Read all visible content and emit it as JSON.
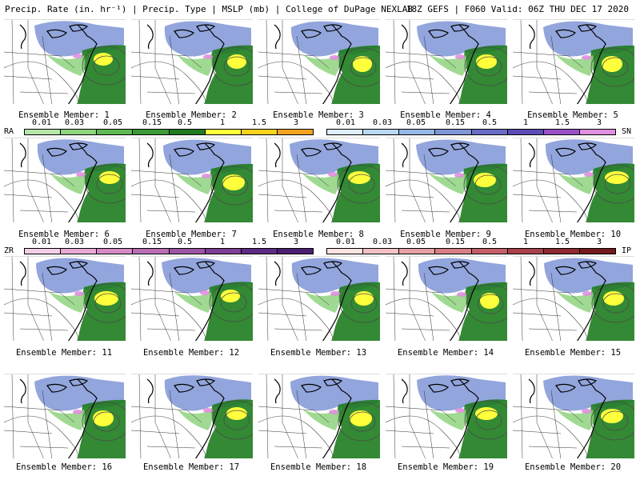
{
  "header": {
    "left": "Precip. Rate (in. hr⁻¹) | Precip. Type | MSLP (mb) | College of DuPage NEXLAB",
    "right": "18Z GEFS | F060 Valid: 06Z THU DEC 17 2020"
  },
  "members": [
    {
      "label": "Ensemble Member: 1"
    },
    {
      "label": "Ensemble Member: 2"
    },
    {
      "label": "Ensemble Member: 3"
    },
    {
      "label": "Ensemble Member: 4"
    },
    {
      "label": "Ensemble Member: 5"
    },
    {
      "label": "Ensemble Member: 6"
    },
    {
      "label": "Ensemble Member: 7"
    },
    {
      "label": "Ensemble Member: 8"
    },
    {
      "label": "Ensemble Member: 9"
    },
    {
      "label": "Ensemble Member: 10"
    },
    {
      "label": "Ensemble Member: 11"
    },
    {
      "label": "Ensemble Member: 12"
    },
    {
      "label": "Ensemble Member: 13"
    },
    {
      "label": "Ensemble Member: 14"
    },
    {
      "label": "Ensemble Member: 15"
    },
    {
      "label": "Ensemble Member: 16"
    },
    {
      "label": "Ensemble Member: 17"
    },
    {
      "label": "Ensemble Member: 18"
    },
    {
      "label": "Ensemble Member: 19"
    },
    {
      "label": "Ensemble Member: 20"
    }
  ],
  "legends": {
    "rain": {
      "code": "RA",
      "ticks": [
        "0.01",
        "0.03",
        "0.05",
        "0.15",
        "0.5",
        "1",
        "1.5",
        "3"
      ],
      "colors": [
        "#b6e6a9",
        "#8fd47f",
        "#5fba53",
        "#3a9a36",
        "#1e7c1e",
        "#ffff3c",
        "#f7d21e",
        "#f5a31e"
      ]
    },
    "snow": {
      "code": "SN",
      "ticks": [
        "0.01",
        "0.03",
        "0.05",
        "0.15",
        "0.5",
        "1",
        "1.5",
        "3"
      ],
      "colors": [
        "#dfeefc",
        "#b8d8f4",
        "#95b8e6",
        "#7f95d6",
        "#6a6cc6",
        "#5a4bb5",
        "#9a4fc8",
        "#e08ee0"
      ]
    },
    "freezing_rain": {
      "code": "ZR",
      "ticks": [
        "0.01",
        "0.03",
        "0.05",
        "0.15",
        "0.5",
        "1",
        "1.5",
        "3"
      ],
      "colors": [
        "#f5cfe8",
        "#e7a9d6",
        "#d58ac6",
        "#b86db4",
        "#9c55a5",
        "#7d3f94",
        "#5f2a83",
        "#4a1f70"
      ]
    },
    "ice_pellets": {
      "code": "IP",
      "ticks": [
        "0.01",
        "0.03",
        "0.05",
        "0.15",
        "0.5",
        "1",
        "1.5",
        "3"
      ],
      "colors": [
        "#fde3e3",
        "#f4c2c6",
        "#e7a0a6",
        "#d77f86",
        "#c35f66",
        "#a9414a",
        "#8d2a30",
        "#731a1d"
      ]
    }
  },
  "colors": {
    "rain_light": "#8fd47f",
    "rain_heavy": "#1e7c1e",
    "rain_intense": "#ffff3c",
    "snow": "#7f95d6",
    "mix": "#e08ee0",
    "coast": "#000000",
    "borders": "#333333",
    "isobar": "#4a4a4a"
  }
}
